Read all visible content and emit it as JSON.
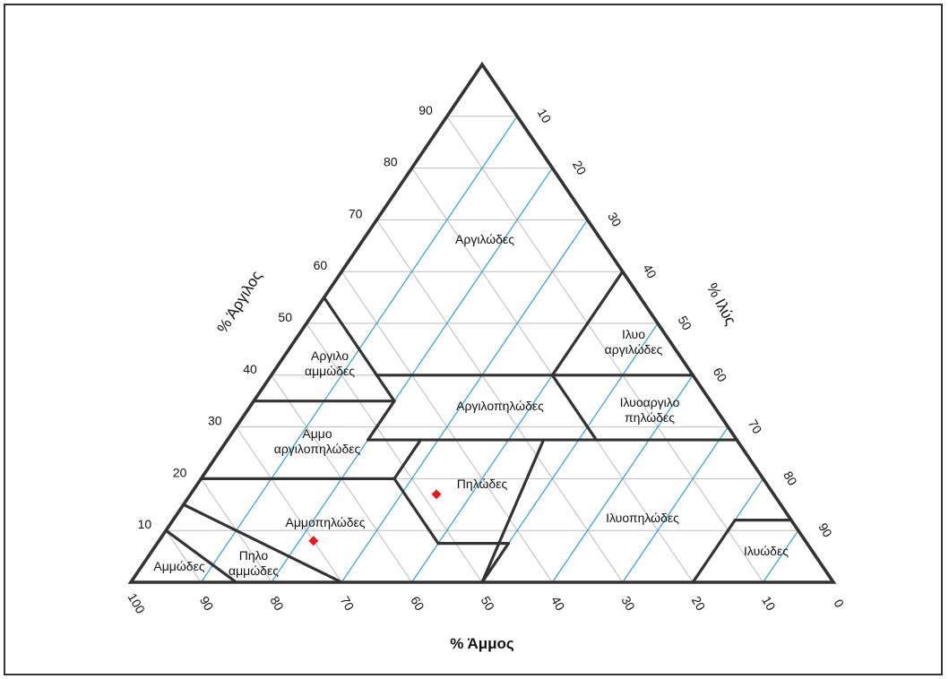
{
  "chart_data": {
    "type": "scatter",
    "title": "",
    "axes": {
      "sand": {
        "title": "% Άμμος",
        "ticks": [
          "100",
          "90",
          "80",
          "70",
          "60",
          "50",
          "40",
          "30",
          "20",
          "10",
          "0"
        ]
      },
      "clay": {
        "title": "% Άργιλος",
        "ticks": [
          "10",
          "20",
          "30",
          "40",
          "50",
          "60",
          "70",
          "80",
          "90"
        ]
      },
      "silt": {
        "title": "% Ιλύς",
        "ticks": [
          "10",
          "20",
          "30",
          "40",
          "50",
          "60",
          "70",
          "80",
          "90"
        ]
      }
    },
    "grid": true,
    "colors": {
      "border": "#333333",
      "grid": "#bbbbbb",
      "silt_grid": "#3aa9c8",
      "points": "#e8191d"
    },
    "regions": [
      {
        "name": "clay",
        "label": [
          "Αργιλώδες"
        ]
      },
      {
        "name": "sandy-clay",
        "label": [
          "Αργιλο",
          "αμμώδες"
        ]
      },
      {
        "name": "silty-clay",
        "label": [
          "Ιλυο",
          "αργιλώδες"
        ]
      },
      {
        "name": "clay-loam",
        "label": [
          "Αργιλοπηλώδες"
        ]
      },
      {
        "name": "silty-clay-loam",
        "label": [
          "Ιλυοαργιλο",
          "πηλώδες"
        ]
      },
      {
        "name": "sandy-clay-loam",
        "label": [
          "Αμμο",
          "αργιλοπηλώδες"
        ]
      },
      {
        "name": "loam",
        "label": [
          "Πηλώδες"
        ]
      },
      {
        "name": "sandy-loam",
        "label": [
          "Αμμοπηλώδες"
        ]
      },
      {
        "name": "silt-loam",
        "label": [
          "Ιλυοπηλώδες"
        ]
      },
      {
        "name": "loamy-sand",
        "label": [
          "Πηλο",
          "αμμώδες"
        ]
      },
      {
        "name": "sand",
        "label": [
          "Αμμώδες"
        ]
      },
      {
        "name": "silt",
        "label": [
          "Ιλυώδες"
        ]
      }
    ],
    "points": [
      {
        "sand": 70,
        "clay": 8
      },
      {
        "sand": 48,
        "clay": 17
      }
    ]
  }
}
